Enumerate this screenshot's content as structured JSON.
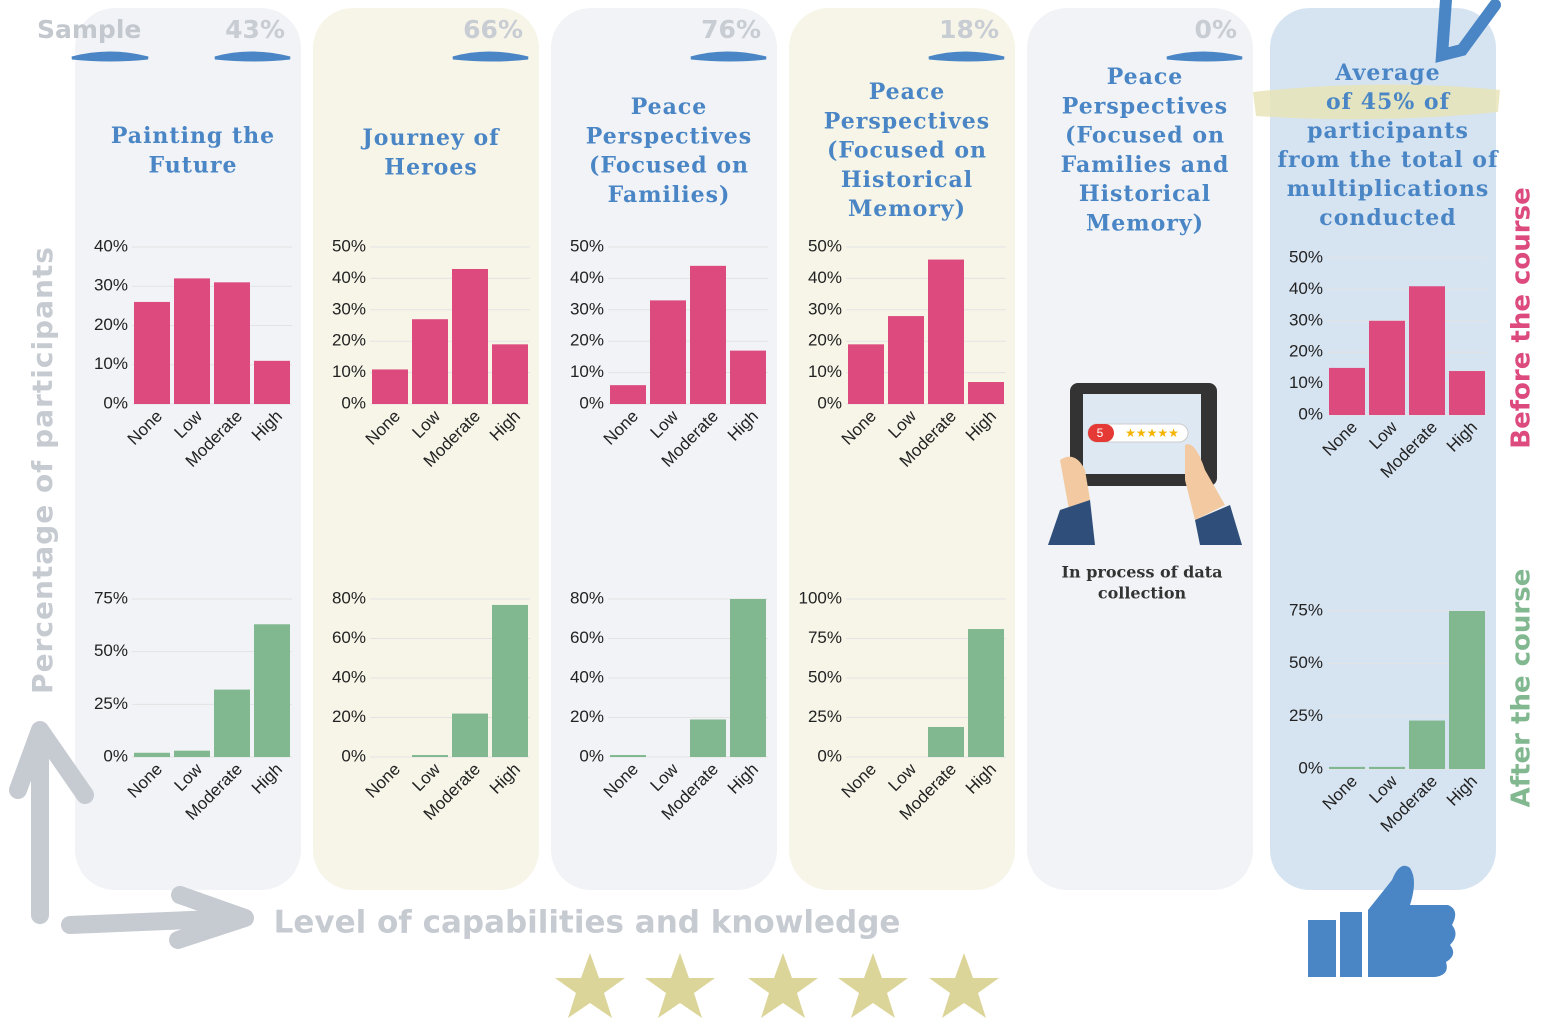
{
  "sample_label": "Sample",
  "y_axis_label": "Percentage of participants",
  "x_axis_label": "Level of capabilities and knowledge",
  "before_label": "Before the course",
  "after_label": "After the course",
  "placeholder_note": [
    "In process of data",
    "collection"
  ],
  "placeholder_badge": "5",
  "columns": [
    {
      "sample": "43%",
      "title": [
        "Painting the",
        "Future"
      ]
    },
    {
      "sample": "66%",
      "title": [
        "Journey of",
        "Heroes"
      ]
    },
    {
      "sample": "76%",
      "title": [
        "Peace",
        "Perspectives",
        "(Focused on",
        "Families)"
      ]
    },
    {
      "sample": "18%",
      "title": [
        "Peace",
        "Perspectives",
        "(Focused on",
        "Historical",
        "Memory)"
      ]
    },
    {
      "sample": "0%",
      "title": [
        "Peace",
        "Perspectives",
        "(Focused on",
        "Families and",
        "Historical",
        "Memory)"
      ]
    },
    {
      "title": [
        "Average",
        "of 45% of",
        "participants",
        "from the total of",
        "multiplications",
        "conducted"
      ]
    }
  ],
  "chart_data": [
    {
      "type": "bar",
      "categories": [
        "None",
        "Low",
        "Moderate",
        "High"
      ],
      "values": [
        26,
        32,
        31,
        11
      ],
      "color": "#dc4a7e",
      "ylim": [
        0,
        40
      ],
      "yticks": [
        {
          "value": 0,
          "label": "0%"
        },
        {
          "value": 10,
          "label": "10%"
        },
        {
          "value": 20,
          "label": "20%"
        },
        {
          "value": 30,
          "label": "30%"
        },
        {
          "value": 40,
          "label": "40%"
        }
      ]
    },
    {
      "type": "bar",
      "categories": [
        "None",
        "Low",
        "Moderate",
        "High"
      ],
      "values": [
        2,
        3,
        32,
        63
      ],
      "color": "#82b890",
      "ylim": [
        0,
        75
      ],
      "yticks": [
        {
          "value": 0,
          "label": "0%"
        },
        {
          "value": 25,
          "label": "25%"
        },
        {
          "value": 50,
          "label": "50%"
        },
        {
          "value": 75,
          "label": "75%"
        }
      ]
    },
    {
      "type": "bar",
      "categories": [
        "None",
        "Low",
        "Moderate",
        "High"
      ],
      "values": [
        11,
        27,
        43,
        19
      ],
      "color": "#dc4a7e",
      "ylim": [
        0,
        50
      ],
      "yticks": [
        {
          "value": 0,
          "label": "0%"
        },
        {
          "value": 10,
          "label": "10%"
        },
        {
          "value": 20,
          "label": "20%"
        },
        {
          "value": 30,
          "label": "30%"
        },
        {
          "value": 40,
          "label": "40%"
        },
        {
          "value": 50,
          "label": "50%"
        }
      ]
    },
    {
      "type": "bar",
      "categories": [
        "None",
        "Low",
        "Moderate",
        "High"
      ],
      "values": [
        0,
        1,
        22,
        77
      ],
      "color": "#82b890",
      "ylim": [
        0,
        80
      ],
      "yticks": [
        {
          "value": 0,
          "label": "0%"
        },
        {
          "value": 20,
          "label": "20%"
        },
        {
          "value": 40,
          "label": "40%"
        },
        {
          "value": 60,
          "label": "60%"
        },
        {
          "value": 80,
          "label": "80%"
        }
      ]
    },
    {
      "type": "bar",
      "categories": [
        "None",
        "Low",
        "Moderate",
        "High"
      ],
      "values": [
        6,
        33,
        44,
        17
      ],
      "color": "#dc4a7e",
      "ylim": [
        0,
        50
      ],
      "yticks": [
        {
          "value": 0,
          "label": "0%"
        },
        {
          "value": 10,
          "label": "10%"
        },
        {
          "value": 20,
          "label": "20%"
        },
        {
          "value": 30,
          "label": "30%"
        },
        {
          "value": 40,
          "label": "40%"
        },
        {
          "value": 50,
          "label": "50%"
        }
      ]
    },
    {
      "type": "bar",
      "categories": [
        "None",
        "Low",
        "Moderate",
        "High"
      ],
      "values": [
        1,
        0,
        19,
        80
      ],
      "color": "#82b890",
      "ylim": [
        0,
        80
      ],
      "yticks": [
        {
          "value": 0,
          "label": "0%"
        },
        {
          "value": 20,
          "label": "20%"
        },
        {
          "value": 40,
          "label": "40%"
        },
        {
          "value": 60,
          "label": "60%"
        },
        {
          "value": 80,
          "label": "80%"
        }
      ]
    },
    {
      "type": "bar",
      "categories": [
        "None",
        "Low",
        "Moderate",
        "High"
      ],
      "values": [
        19,
        28,
        46,
        7
      ],
      "color": "#dc4a7e",
      "ylim": [
        0,
        50
      ],
      "yticks": [
        {
          "value": 0,
          "label": "0%"
        },
        {
          "value": 10,
          "label": "10%"
        },
        {
          "value": 20,
          "label": "20%"
        },
        {
          "value": 30,
          "label": "30%"
        },
        {
          "value": 40,
          "label": "40%"
        },
        {
          "value": 50,
          "label": "50%"
        }
      ]
    },
    {
      "type": "bar",
      "categories": [
        "None",
        "Low",
        "Moderate",
        "High"
      ],
      "values": [
        0,
        0,
        19,
        81
      ],
      "color": "#82b890",
      "ylim": [
        0,
        100
      ],
      "yticks": [
        {
          "value": 0,
          "label": "0%"
        },
        {
          "value": 25,
          "label": "25%"
        },
        {
          "value": 50,
          "label": "50%"
        },
        {
          "value": 75,
          "label": "75%"
        },
        {
          "value": 100,
          "label": "100%"
        }
      ]
    },
    {
      "type": "bar",
      "categories": [
        "None",
        "Low",
        "Moderate",
        "High"
      ],
      "values": [
        15,
        30,
        41,
        14
      ],
      "color": "#dc4a7e",
      "ylim": [
        0,
        50
      ],
      "yticks": [
        {
          "value": 0,
          "label": "0%"
        },
        {
          "value": 10,
          "label": "10%"
        },
        {
          "value": 20,
          "label": "20%"
        },
        {
          "value": 30,
          "label": "30%"
        },
        {
          "value": 40,
          "label": "40%"
        },
        {
          "value": 50,
          "label": "50%"
        }
      ]
    },
    {
      "type": "bar",
      "categories": [
        "None",
        "Low",
        "Moderate",
        "High"
      ],
      "values": [
        1,
        1,
        23,
        75
      ],
      "color": "#82b890",
      "ylim": [
        0,
        75
      ],
      "yticks": [
        {
          "value": 0,
          "label": "0%"
        },
        {
          "value": 25,
          "label": "25%"
        },
        {
          "value": 50,
          "label": "50%"
        },
        {
          "value": 75,
          "label": "75%"
        }
      ]
    }
  ]
}
